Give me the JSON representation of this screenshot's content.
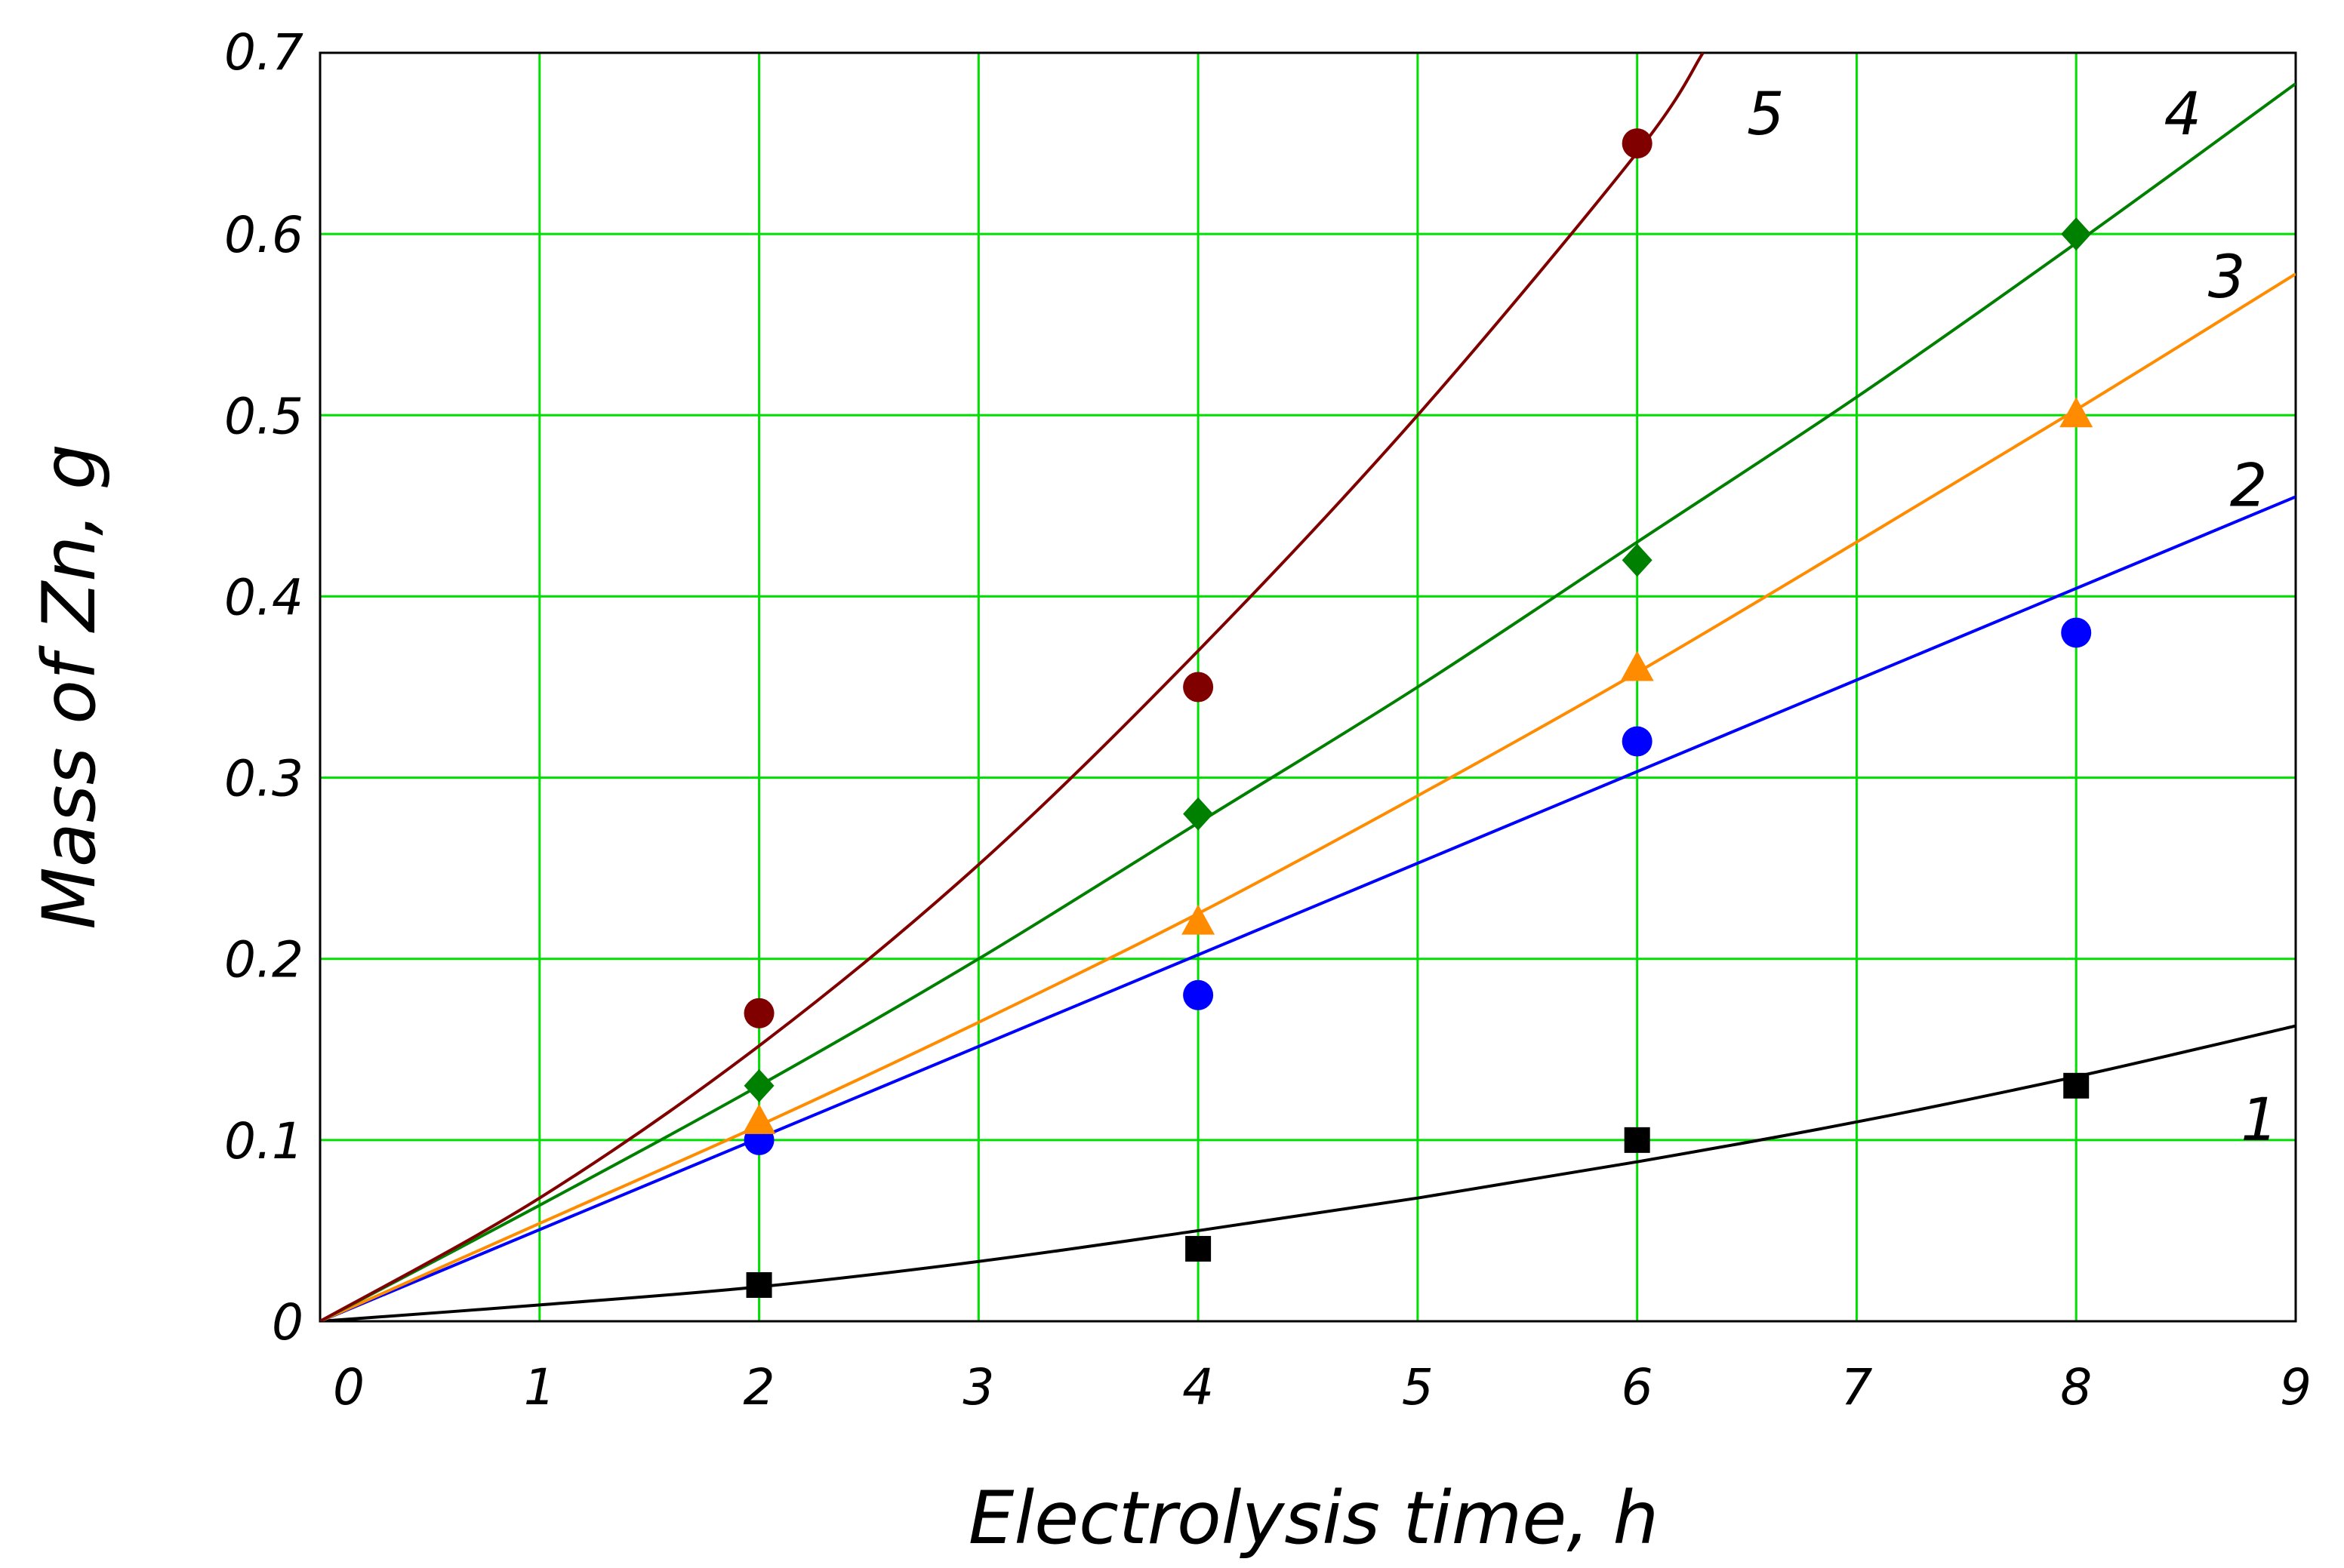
{
  "chart_data": {
    "type": "scatter",
    "title": "",
    "xlabel": "Electrolysis time, h",
    "ylabel": "Mass of Zn, g",
    "xlim": [
      0,
      9
    ],
    "ylim": [
      0,
      0.7
    ],
    "xticks": [
      0,
      1,
      2,
      3,
      4,
      5,
      6,
      7,
      8,
      9
    ],
    "yticks": [
      0,
      0.1,
      0.2,
      0.3,
      0.4,
      0.5,
      0.6,
      0.7
    ],
    "xtick_labels": [
      "0",
      "1",
      "2",
      "3",
      "4",
      "5",
      "6",
      "7",
      "8",
      "9"
    ],
    "ytick_labels": [
      "0",
      "0.1",
      "0.2",
      "0.3",
      "0.4",
      "0.5",
      "0.6",
      "0.7"
    ],
    "grid": true,
    "grid_color": "#00e000",
    "series": [
      {
        "name": "1",
        "label": "1",
        "color": "#000000",
        "marker": "square",
        "points": {
          "x": [
            2,
            4,
            6,
            8
          ],
          "y": [
            0.02,
            0.04,
            0.1,
            0.13
          ]
        },
        "fit": {
          "x": [
            0,
            1,
            2,
            3,
            4,
            5,
            6,
            7,
            8,
            9
          ],
          "y": [
            0,
            0.009,
            0.019,
            0.033,
            0.05,
            0.068,
            0.088,
            0.11,
            0.135,
            0.163
          ]
        }
      },
      {
        "name": "2",
        "label": "2",
        "color": "#0000ff",
        "marker": "circle",
        "points": {
          "x": [
            2,
            4,
            6,
            8
          ],
          "y": [
            0.1,
            0.18,
            0.32,
            0.38
          ]
        },
        "fit": {
          "x": [
            0,
            9
          ],
          "y": [
            0,
            0.455
          ]
        }
      },
      {
        "name": "3",
        "label": "3",
        "color": "#ff8c00",
        "marker": "triangle",
        "points": {
          "x": [
            2,
            4,
            6,
            8
          ],
          "y": [
            0.11,
            0.22,
            0.36,
            0.5
          ]
        },
        "fit": {
          "x": [
            0,
            1,
            2,
            3,
            4,
            5,
            6,
            7,
            8,
            9
          ],
          "y": [
            0,
            0.054,
            0.108,
            0.165,
            0.225,
            0.29,
            0.358,
            0.43,
            0.503,
            0.578
          ]
        }
      },
      {
        "name": "4",
        "label": "4",
        "color": "#008000",
        "marker": "diamond",
        "points": {
          "x": [
            2,
            4,
            6,
            8
          ],
          "y": [
            0.13,
            0.28,
            0.42,
            0.6
          ]
        },
        "fit": {
          "x": [
            0,
            1,
            2,
            3,
            4,
            5,
            6,
            7,
            8,
            9
          ],
          "y": [
            0,
            0.064,
            0.13,
            0.2,
            0.275,
            0.35,
            0.43,
            0.51,
            0.595,
            0.683
          ]
        }
      },
      {
        "name": "5",
        "label": "5",
        "color": "#800000",
        "marker": "circle",
        "points": {
          "x": [
            2,
            4,
            6
          ],
          "y": [
            0.17,
            0.35,
            0.65
          ]
        },
        "fit": {
          "x": [
            0,
            1,
            2,
            3,
            4,
            5,
            6,
            6.3
          ],
          "y": [
            0,
            0.068,
            0.152,
            0.252,
            0.37,
            0.5,
            0.645,
            0.7
          ]
        }
      }
    ]
  }
}
